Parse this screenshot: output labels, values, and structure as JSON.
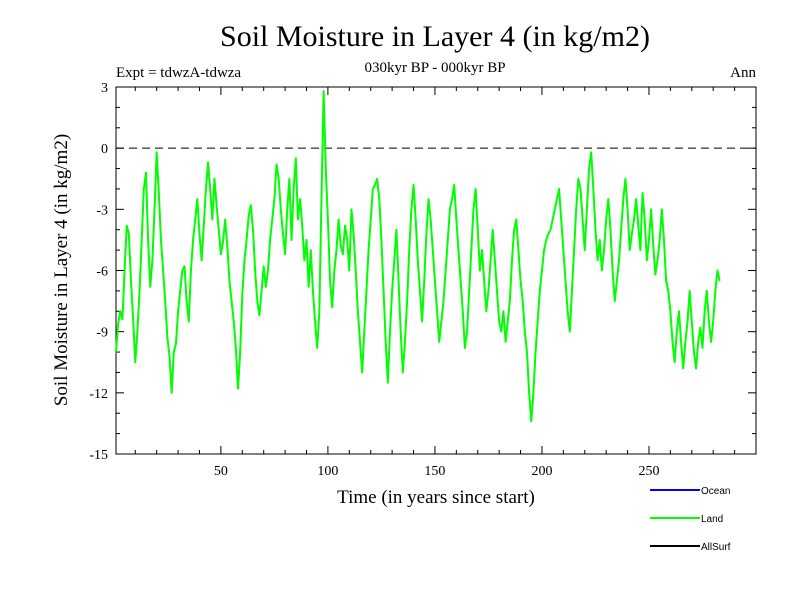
{
  "chart_data": {
    "type": "line",
    "title": "Soil Moisture in Layer 4 (in kg/m2)",
    "subtitle": "030kyr BP - 000kyr BP",
    "experiment_label": "Expt = tdwzA-tdwza",
    "season_label": "Ann",
    "xlabel": "Time (in years since start)",
    "ylabel": "Soil Moisture in Layer 4 (in kg/m2)",
    "xlim": [
      1,
      300
    ],
    "ylim": [
      -15,
      3
    ],
    "x_ticks": [
      50,
      100,
      150,
      200,
      250
    ],
    "y_ticks": [
      3,
      0,
      -3,
      -6,
      -9,
      -12,
      -15
    ],
    "reference_line": 0,
    "legend": [
      {
        "name": "Ocean",
        "color": "#0000ff"
      },
      {
        "name": "Land",
        "color": "#00ff00"
      },
      {
        "name": "AllSurf",
        "color": "#000000"
      }
    ],
    "series": [
      {
        "name": "Land",
        "color": "#00ff00",
        "x_start": 1,
        "x_step": 1,
        "values": [
          -10.0,
          -8.6,
          -8.0,
          -8.4,
          -6.0,
          -3.8,
          -4.2,
          -6.5,
          -8.4,
          -10.5,
          -9.0,
          -7.0,
          -4.5,
          -2.0,
          -1.2,
          -4.5,
          -6.8,
          -5.5,
          -3.0,
          -0.2,
          -2.2,
          -4.5,
          -6.0,
          -7.5,
          -9.3,
          -10.2,
          -12.0,
          -10.0,
          -9.6,
          -8.0,
          -7.0,
          -6.0,
          -5.8,
          -7.5,
          -8.5,
          -6.0,
          -4.5,
          -3.5,
          -2.5,
          -4.2,
          -5.5,
          -3.8,
          -2.0,
          -0.7,
          -2.0,
          -3.5,
          -1.5,
          -2.8,
          -4.0,
          -5.2,
          -4.6,
          -3.5,
          -4.8,
          -6.5,
          -7.5,
          -8.5,
          -9.8,
          -11.8,
          -10.0,
          -7.2,
          -5.5,
          -4.5,
          -3.3,
          -2.8,
          -4.0,
          -6.0,
          -7.5,
          -8.2,
          -7.0,
          -5.8,
          -6.8,
          -6.0,
          -4.5,
          -3.5,
          -2.5,
          -0.8,
          -1.5,
          -3.0,
          -4.2,
          -5.2,
          -3.0,
          -1.5,
          -4.5,
          -2.0,
          -0.5,
          -3.5,
          -2.5,
          -3.8,
          -5.5,
          -4.5,
          -6.8,
          -5.0,
          -7.0,
          -8.5,
          -9.8,
          -8.0,
          -2.5,
          2.8,
          -1.0,
          -3.5,
          -6.5,
          -7.8,
          -6.0,
          -5.0,
          -3.5,
          -4.8,
          -5.2,
          -3.8,
          -4.5,
          -6.0,
          -3.0,
          -4.2,
          -6.0,
          -8.0,
          -9.5,
          -11.0,
          -9.0,
          -7.0,
          -5.0,
          -3.5,
          -2.0,
          -1.8,
          -1.5,
          -2.5,
          -4.5,
          -7.0,
          -9.5,
          -11.5,
          -9.0,
          -7.0,
          -5.5,
          -4.0,
          -6.5,
          -9.0,
          -11.0,
          -9.5,
          -7.5,
          -5.0,
          -3.0,
          -1.8,
          -3.5,
          -5.5,
          -7.0,
          -8.5,
          -6.5,
          -4.2,
          -2.5,
          -3.5,
          -5.0,
          -6.5,
          -8.0,
          -9.5,
          -8.5,
          -7.5,
          -6.0,
          -4.5,
          -3.0,
          -2.5,
          -1.8,
          -3.5,
          -5.0,
          -6.5,
          -8.0,
          -9.8,
          -9.0,
          -7.0,
          -5.0,
          -3.0,
          -2.0,
          -4.0,
          -6.0,
          -5.0,
          -6.5,
          -8.0,
          -7.0,
          -5.5,
          -4.0,
          -5.5,
          -7.0,
          -8.5,
          -9.0,
          -8.0,
          -9.5,
          -8.5,
          -7.5,
          -5.5,
          -4.0,
          -3.5,
          -5.0,
          -6.5,
          -7.5,
          -9.0,
          -10.0,
          -12.0,
          -13.4,
          -12.0,
          -10.0,
          -8.5,
          -7.0,
          -6.0,
          -5.0,
          -4.5,
          -4.2,
          -4.0,
          -3.5,
          -3.0,
          -2.5,
          -2.0,
          -3.5,
          -5.0,
          -6.5,
          -8.0,
          -9.0,
          -7.0,
          -5.0,
          -3.0,
          -1.5,
          -2.0,
          -3.5,
          -5.0,
          -3.0,
          -1.0,
          -0.2,
          -2.0,
          -4.0,
          -5.5,
          -4.5,
          -6.0,
          -5.0,
          -3.5,
          -2.5,
          -4.0,
          -6.0,
          -7.5,
          -6.5,
          -5.5,
          -4.0,
          -2.5,
          -1.5,
          -3.0,
          -5.0,
          -4.2,
          -3.5,
          -2.5,
          -3.8,
          -5.0,
          -2.2,
          -3.5,
          -5.5,
          -4.5,
          -3.0,
          -4.8,
          -6.2,
          -5.5,
          -4.5,
          -3.0,
          -4.5,
          -6.5,
          -7.0,
          -8.0,
          -9.5,
          -10.5,
          -9.0,
          -8.0,
          -9.5,
          -10.8,
          -9.5,
          -8.5,
          -7.0,
          -8.5,
          -10.0,
          -10.8,
          -9.5,
          -8.8,
          -9.8,
          -8.0,
          -7.0,
          -8.5,
          -9.5,
          -8.5,
          -7.0,
          -6.0,
          -6.5
        ]
      }
    ]
  }
}
